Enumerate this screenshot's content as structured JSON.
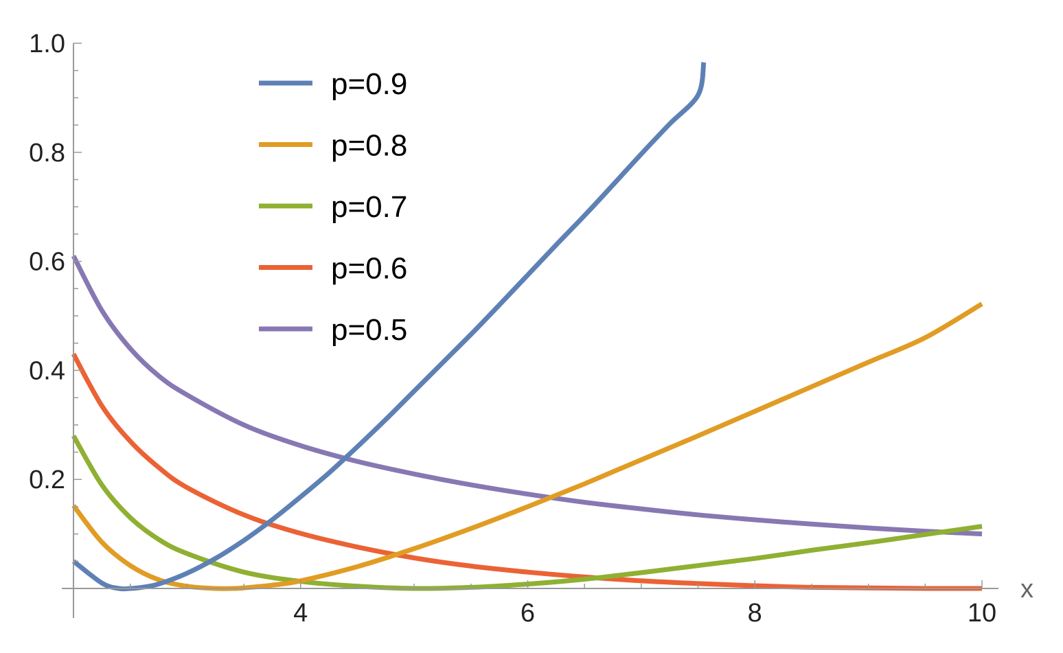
{
  "chart_data": {
    "type": "line",
    "title": "",
    "xlabel": "x",
    "ylabel": "",
    "xlim": [
      2.0,
      10.3
    ],
    "ylim": [
      -0.015,
      1.0
    ],
    "grid": false,
    "legend_position": "top-left",
    "x_ticks": [
      {
        "value": 4,
        "label": "4"
      },
      {
        "value": 6,
        "label": "6"
      },
      {
        "value": 8,
        "label": "8"
      },
      {
        "value": 10,
        "label": "10"
      }
    ],
    "y_ticks": [
      {
        "value": 0.2,
        "label": "0.2"
      },
      {
        "value": 0.4,
        "label": "0.4"
      },
      {
        "value": 0.6,
        "label": "0.6"
      },
      {
        "value": 0.8,
        "label": "0.8"
      },
      {
        "value": 1.0,
        "label": "1.0"
      }
    ],
    "series": [
      {
        "name": "p=0.9",
        "color": "#5E81B5",
        "x": [
          2.0,
          2.25,
          2.4,
          2.5,
          2.6,
          2.75,
          3.0,
          3.25,
          3.5,
          3.75,
          4.0,
          4.25,
          4.5,
          4.75,
          5.0,
          5.25,
          5.5,
          5.75,
          6.0,
          6.25,
          6.5,
          6.75,
          7.0,
          7.25,
          7.5,
          7.55
        ],
        "y": [
          0.05,
          0.01,
          0.0,
          0.0,
          0.002,
          0.008,
          0.028,
          0.055,
          0.088,
          0.126,
          0.168,
          0.212,
          0.26,
          0.31,
          0.362,
          0.414,
          0.466,
          0.52,
          0.575,
          0.63,
          0.684,
          0.74,
          0.797,
          0.852,
          0.905,
          0.965
        ]
      },
      {
        "name": "p=0.8",
        "color": "#E19C24",
        "x": [
          2.0,
          2.25,
          2.5,
          2.75,
          3.0,
          3.25,
          3.4,
          3.5,
          3.75,
          4.0,
          4.5,
          5.0,
          5.5,
          6.0,
          6.5,
          7.0,
          7.5,
          8.0,
          8.5,
          9.0,
          9.5,
          10.0
        ],
        "y": [
          0.152,
          0.085,
          0.042,
          0.016,
          0.004,
          0.0,
          0.0,
          0.001,
          0.006,
          0.014,
          0.04,
          0.073,
          0.11,
          0.15,
          0.192,
          0.236,
          0.28,
          0.325,
          0.37,
          0.415,
          0.46,
          0.522
        ]
      },
      {
        "name": "p=0.7",
        "color": "#8FB032",
        "x": [
          2.0,
          2.25,
          2.5,
          2.75,
          3.0,
          3.5,
          4.0,
          4.5,
          5.0,
          5.5,
          6.0,
          6.5,
          7.0,
          7.5,
          8.0,
          8.5,
          9.0,
          9.5,
          10.0
        ],
        "y": [
          0.28,
          0.19,
          0.13,
          0.09,
          0.064,
          0.03,
          0.013,
          0.004,
          0.0,
          0.002,
          0.008,
          0.017,
          0.029,
          0.042,
          0.055,
          0.07,
          0.084,
          0.099,
          0.114
        ]
      },
      {
        "name": "p=0.6",
        "color": "#EB6235",
        "x": [
          2.0,
          2.25,
          2.5,
          2.75,
          3.0,
          3.5,
          4.0,
          4.5,
          5.0,
          5.5,
          6.0,
          6.5,
          7.0,
          7.5,
          8.0,
          8.5,
          9.0,
          9.5,
          10.0
        ],
        "y": [
          0.43,
          0.335,
          0.27,
          0.222,
          0.185,
          0.135,
          0.101,
          0.076,
          0.056,
          0.041,
          0.03,
          0.021,
          0.014,
          0.009,
          0.005,
          0.002,
          0.001,
          0.0,
          0.0
        ]
      },
      {
        "name": "p=0.5",
        "color": "#8778B3",
        "x": [
          2.0,
          2.25,
          2.5,
          2.75,
          3.0,
          3.5,
          4.0,
          4.5,
          5.0,
          5.5,
          6.0,
          6.5,
          7.0,
          7.5,
          8.0,
          8.5,
          9.0,
          9.5,
          10.0
        ],
        "y": [
          0.61,
          0.51,
          0.44,
          0.39,
          0.355,
          0.3,
          0.262,
          0.233,
          0.21,
          0.19,
          0.173,
          0.158,
          0.146,
          0.135,
          0.126,
          0.118,
          0.111,
          0.105,
          0.1
        ]
      }
    ]
  }
}
